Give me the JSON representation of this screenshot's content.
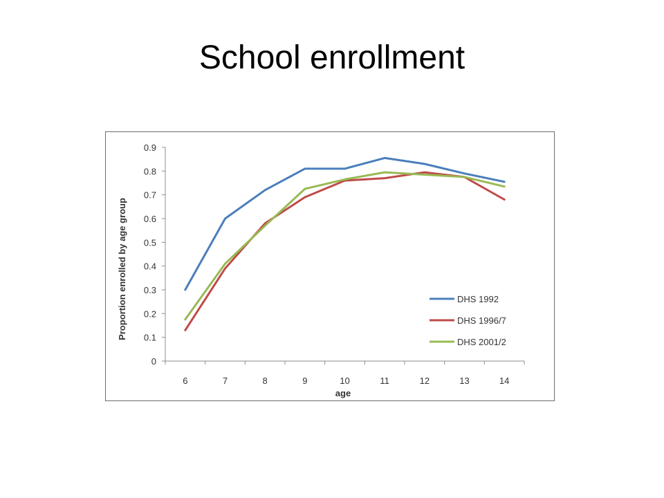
{
  "slide": {
    "title": "School enrollment"
  },
  "chart_data": {
    "type": "line",
    "title": "",
    "xlabel": "age",
    "ylabel": "Proportion enrolled by age group",
    "x": [
      "6",
      "7",
      "8",
      "9",
      "10",
      "11",
      "12",
      "13",
      "14"
    ],
    "ylim": [
      0,
      0.9
    ],
    "yticks": [
      "0",
      "0.1",
      "0.2",
      "0.3",
      "0.4",
      "0.5",
      "0.6",
      "0.7",
      "0.8",
      "0.9"
    ],
    "yticks_values": [
      0,
      0.1,
      0.2,
      0.3,
      0.4,
      0.5,
      0.6,
      0.7,
      0.8,
      0.9
    ],
    "grid": false,
    "legend_position": "bottom-right",
    "series": [
      {
        "name": "DHS 1992",
        "color": "#4a7ebb",
        "values": [
          0.3,
          0.6,
          0.72,
          0.81,
          0.81,
          0.855,
          0.83,
          0.79,
          0.755
        ]
      },
      {
        "name": "DHS 1996/7",
        "color": "#be4b48",
        "values": [
          0.13,
          0.39,
          0.58,
          0.69,
          0.76,
          0.77,
          0.795,
          0.775,
          0.68
        ]
      },
      {
        "name": "DHS 2001/2",
        "color": "#98b954",
        "values": [
          0.175,
          0.41,
          0.57,
          0.725,
          0.765,
          0.795,
          0.785,
          0.775,
          0.735
        ]
      }
    ]
  }
}
